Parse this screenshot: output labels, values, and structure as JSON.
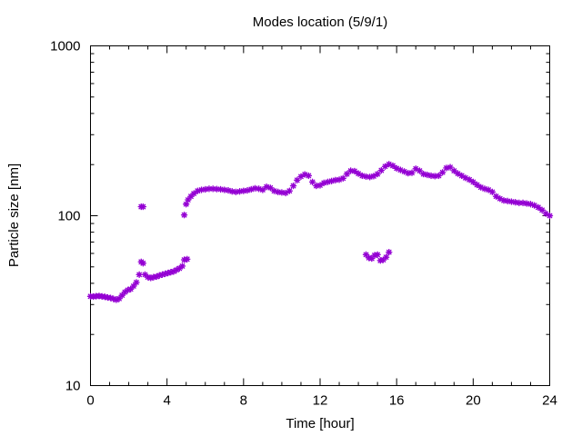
{
  "chart_data": {
    "type": "scatter",
    "title": "Modes location (5/9/1)",
    "xlabel": "Time [hour]",
    "ylabel": "Particle size [nm]",
    "xlim": [
      0,
      24
    ],
    "ylim": [
      10,
      1000
    ],
    "yscale": "log",
    "x_ticks": [
      0,
      4,
      8,
      12,
      16,
      20,
      24
    ],
    "y_ticks": [
      10,
      100,
      1000
    ],
    "grid": false,
    "legend": "none",
    "marker_color": "#9400d3",
    "series": [
      {
        "points": [
          [
            0.0,
            33.5
          ],
          [
            0.15,
            33.4
          ],
          [
            0.3,
            33.6
          ],
          [
            0.45,
            33.7
          ],
          [
            0.6,
            33.5
          ],
          [
            0.75,
            33.3
          ],
          [
            0.9,
            33.0
          ],
          [
            1.05,
            32.8
          ],
          [
            1.2,
            32.4
          ],
          [
            1.35,
            32.0
          ],
          [
            1.5,
            32.5
          ],
          [
            1.65,
            34.0
          ],
          [
            1.8,
            35.5
          ],
          [
            1.95,
            36.5
          ],
          [
            2.1,
            37.0
          ],
          [
            2.25,
            38.5
          ],
          [
            2.4,
            40.5
          ],
          [
            2.55,
            45.0
          ],
          [
            2.65,
            53.5
          ],
          [
            2.75,
            52.5
          ],
          [
            2.85,
            45.0
          ],
          [
            3.0,
            43.5
          ],
          [
            3.15,
            43.0
          ],
          [
            3.3,
            43.5
          ],
          [
            3.45,
            43.8
          ],
          [
            3.6,
            44.5
          ],
          [
            3.75,
            45.0
          ],
          [
            3.9,
            45.5
          ],
          [
            4.05,
            46.0
          ],
          [
            4.2,
            46.5
          ],
          [
            4.35,
            47.0
          ],
          [
            4.5,
            48.0
          ],
          [
            4.65,
            49.0
          ],
          [
            4.8,
            50.5
          ],
          [
            4.9,
            55.0
          ],
          [
            5.05,
            55.5
          ],
          [
            2.65,
            113
          ],
          [
            2.75,
            113
          ],
          [
            4.9,
            101
          ],
          [
            5.0,
            117
          ],
          [
            5.1,
            124
          ],
          [
            5.25,
            130
          ],
          [
            5.4,
            135
          ],
          [
            5.6,
            140
          ],
          [
            5.8,
            142
          ],
          [
            6.0,
            143
          ],
          [
            6.2,
            144
          ],
          [
            6.4,
            144
          ],
          [
            6.6,
            143.5
          ],
          [
            6.8,
            143
          ],
          [
            7.0,
            142
          ],
          [
            7.2,
            141
          ],
          [
            7.4,
            139
          ],
          [
            7.6,
            138
          ],
          [
            7.8,
            139
          ],
          [
            8.0,
            140
          ],
          [
            8.2,
            141
          ],
          [
            8.4,
            143
          ],
          [
            8.6,
            145
          ],
          [
            8.8,
            144
          ],
          [
            9.0,
            142
          ],
          [
            9.2,
            148
          ],
          [
            9.4,
            146
          ],
          [
            9.6,
            140
          ],
          [
            9.8,
            138
          ],
          [
            10.0,
            137
          ],
          [
            10.2,
            136
          ],
          [
            10.4,
            140
          ],
          [
            10.6,
            150
          ],
          [
            10.8,
            162
          ],
          [
            11.0,
            170
          ],
          [
            11.2,
            175
          ],
          [
            11.4,
            172
          ],
          [
            11.6,
            158
          ],
          [
            11.8,
            150
          ],
          [
            12.0,
            151
          ],
          [
            12.2,
            156
          ],
          [
            12.4,
            158
          ],
          [
            12.6,
            160
          ],
          [
            12.8,
            162
          ],
          [
            13.0,
            163
          ],
          [
            13.2,
            166
          ],
          [
            13.4,
            176
          ],
          [
            13.6,
            184
          ],
          [
            13.8,
            183
          ],
          [
            14.0,
            177
          ],
          [
            14.2,
            172
          ],
          [
            14.4,
            170
          ],
          [
            14.6,
            169
          ],
          [
            14.8,
            171
          ],
          [
            15.0,
            176
          ],
          [
            15.2,
            185
          ],
          [
            15.4,
            195
          ],
          [
            15.6,
            201
          ],
          [
            15.8,
            197
          ],
          [
            16.0,
            190
          ],
          [
            16.2,
            186
          ],
          [
            16.4,
            182
          ],
          [
            16.6,
            178
          ],
          [
            16.8,
            179
          ],
          [
            17.0,
            189
          ],
          [
            17.2,
            184
          ],
          [
            17.4,
            176
          ],
          [
            17.6,
            174
          ],
          [
            17.8,
            172
          ],
          [
            18.0,
            171
          ],
          [
            18.2,
            172
          ],
          [
            18.4,
            180
          ],
          [
            18.6,
            191
          ],
          [
            18.8,
            193
          ],
          [
            19.0,
            184
          ],
          [
            19.2,
            177
          ],
          [
            19.4,
            172
          ],
          [
            19.6,
            167
          ],
          [
            19.8,
            163
          ],
          [
            20.0,
            158
          ],
          [
            20.2,
            152
          ],
          [
            20.4,
            147
          ],
          [
            20.6,
            144
          ],
          [
            20.8,
            142
          ],
          [
            21.0,
            138
          ],
          [
            21.2,
            130
          ],
          [
            21.4,
            126
          ],
          [
            21.6,
            123
          ],
          [
            21.8,
            122
          ],
          [
            22.0,
            121
          ],
          [
            22.2,
            120
          ],
          [
            22.4,
            119
          ],
          [
            22.6,
            119
          ],
          [
            22.8,
            118
          ],
          [
            23.0,
            117
          ],
          [
            23.2,
            115
          ],
          [
            23.4,
            112
          ],
          [
            23.6,
            108
          ],
          [
            23.8,
            103
          ],
          [
            24.0,
            100
          ],
          [
            14.4,
            59.0
          ],
          [
            14.55,
            56.5
          ],
          [
            14.7,
            56.0
          ],
          [
            14.85,
            58.5
          ],
          [
            15.0,
            59.0
          ],
          [
            15.15,
            54.5
          ],
          [
            15.3,
            55.0
          ],
          [
            15.45,
            57.0
          ],
          [
            15.6,
            61.0
          ]
        ]
      }
    ]
  }
}
